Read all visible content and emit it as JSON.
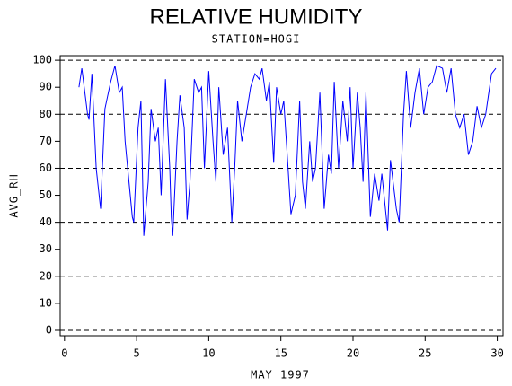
{
  "chart_data": {
    "type": "line",
    "title": "RELATIVE HUMIDITY",
    "subtitle": "STATION=HOGI",
    "x_label": "MAY 1997",
    "y_label": "AVG_RH",
    "xlim": [
      -0.3,
      30.4
    ],
    "ylim": [
      -2,
      101.7
    ],
    "xticks": [
      0,
      5,
      10,
      15,
      20,
      25,
      30
    ],
    "yticks": [
      0,
      10,
      20,
      30,
      40,
      50,
      60,
      70,
      80,
      90,
      100
    ],
    "grid_lines": [
      0,
      20,
      40,
      60,
      80,
      100
    ],
    "series": [
      {
        "name": "AVG_RH",
        "color": "#0000ff",
        "x": [
          1,
          1.2,
          1.6,
          1.7,
          1.9,
          2.2,
          2.5,
          2.8,
          3.2,
          3.5,
          3.8,
          4.0,
          4.2,
          4.7,
          4.8,
          5.1,
          5.3,
          5.5,
          5.8,
          6.0,
          6.3,
          6.5,
          6.7,
          7.0,
          7.3,
          7.4,
          7.5,
          7.8,
          8.0,
          8.3,
          8.5,
          8.7,
          9.0,
          9.3,
          9.5,
          9.7,
          10.0,
          10.3,
          10.5,
          10.7,
          11.0,
          11.3,
          11.6,
          11.8,
          12.0,
          12.3,
          12.6,
          12.9,
          13.2,
          13.5,
          13.7,
          14.0,
          14.2,
          14.5,
          14.7,
          15.0,
          15.2,
          15.5,
          15.7,
          16.0,
          16.3,
          16.5,
          16.7,
          17.0,
          17.2,
          17.4,
          17.7,
          18.0,
          18.3,
          18.5,
          18.7,
          19.0,
          19.3,
          19.6,
          19.8,
          20.0,
          20.3,
          20.5,
          20.7,
          20.9,
          21.2,
          21.5,
          21.8,
          22.0,
          22.4,
          22.6,
          23.0,
          23.2,
          23.5,
          23.7,
          24.0,
          24.3,
          24.6,
          24.9,
          25.2,
          25.5,
          25.8,
          26.2,
          26.5,
          26.8,
          27.1,
          27.4,
          27.7,
          28.0,
          28.3,
          28.6,
          28.9,
          29.2,
          29.6,
          29.9
        ],
        "values": [
          90,
          97,
          80,
          78,
          95,
          60,
          45,
          82,
          92,
          98,
          88,
          90,
          70,
          42,
          40,
          75,
          85,
          35,
          55,
          82,
          70,
          75,
          50,
          93,
          60,
          42,
          35,
          70,
          87,
          75,
          41,
          55,
          93,
          88,
          90,
          60,
          96,
          70,
          55,
          90,
          65,
          75,
          40,
          60,
          85,
          70,
          80,
          90,
          95,
          93,
          97,
          85,
          92,
          62,
          90,
          80,
          85,
          60,
          43,
          50,
          85,
          55,
          45,
          70,
          55,
          60,
          88,
          45,
          65,
          58,
          92,
          60,
          85,
          70,
          90,
          60,
          88,
          75,
          55,
          88,
          42,
          58,
          48,
          58,
          37,
          63,
          45,
          40,
          80,
          96,
          75,
          88,
          97,
          80,
          90,
          92,
          98,
          97,
          88,
          97,
          80,
          75,
          80,
          65,
          70,
          83,
          75,
          80,
          95,
          97
        ]
      }
    ]
  }
}
